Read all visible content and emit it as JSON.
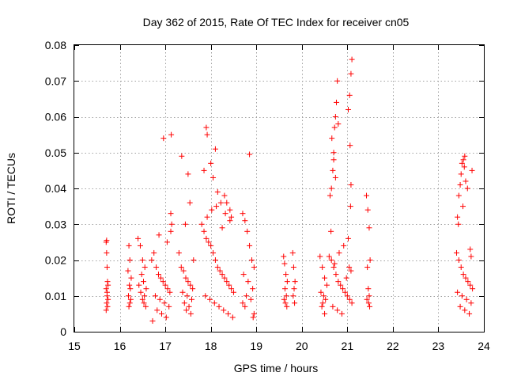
{
  "chart_data": {
    "type": "scatter",
    "title": "Day 362 of 2015, Rate Of TEC Index for receiver cn05",
    "xlabel": "GPS time / hours",
    "ylabel": "ROTI / TECUs",
    "xlim": [
      15,
      24
    ],
    "ylim": [
      0,
      0.08
    ],
    "xticks": [
      "15",
      "16",
      "17",
      "18",
      "19",
      "20",
      "21",
      "22",
      "23",
      "24"
    ],
    "yticks": [
      "0",
      "0.01",
      "0.02",
      "0.03",
      "0.04",
      "0.05",
      "0.06",
      "0.07",
      "0.08"
    ],
    "grid": true,
    "marker": "+",
    "color": "#ff0000",
    "series": [
      {
        "name": "ROTI",
        "x": [
          15.7,
          15.71,
          15.72,
          15.73,
          15.7,
          15.72,
          15.74,
          15.71,
          15.73,
          15.7,
          15.72,
          15.74,
          15.71,
          16.2,
          16.22,
          16.18,
          16.25,
          16.21,
          16.23,
          16.19,
          16.24,
          16.22,
          16.2,
          16.4,
          16.45,
          16.5,
          16.55,
          16.48,
          16.52,
          16.42,
          16.58,
          16.46,
          16.54,
          16.5,
          16.53,
          16.57,
          16.7,
          16.75,
          16.8,
          16.85,
          16.9,
          16.95,
          17.0,
          17.05,
          17.1,
          16.78,
          16.88,
          16.98,
          17.08,
          16.82,
          16.92,
          17.02,
          16.72,
          17.12,
          17.12,
          17.13,
          16.96,
          17.04,
          16.86,
          17.14,
          17.3,
          17.35,
          17.4,
          17.45,
          17.5,
          17.55,
          17.6,
          17.38,
          17.48,
          17.58,
          17.42,
          17.52,
          17.46,
          17.56,
          17.62,
          17.44,
          17.54,
          17.36,
          17.5,
          17.8,
          17.85,
          17.9,
          17.95,
          18.0,
          18.05,
          18.1,
          18.15,
          18.2,
          18.25,
          18.3,
          18.35,
          18.4,
          18.45,
          18.5,
          17.88,
          17.98,
          18.08,
          18.18,
          18.28,
          18.38,
          18.48,
          17.92,
          18.02,
          18.12,
          18.22,
          18.32,
          18.42,
          17.9,
          17.92,
          18.0,
          18.05,
          18.1,
          18.3,
          18.35,
          18.42,
          18.45,
          17.85,
          18.15,
          18.25,
          18.7,
          18.75,
          18.8,
          18.85,
          18.9,
          18.95,
          18.72,
          18.82,
          18.92,
          18.78,
          18.88,
          18.7,
          18.75,
          18.95,
          18.93,
          18.85,
          19.6,
          19.62,
          19.65,
          19.68,
          19.63,
          19.66,
          19.61,
          19.64,
          19.67,
          19.8,
          19.82,
          19.85,
          19.83,
          19.81,
          19.84,
          20.4,
          20.45,
          20.5,
          20.55,
          20.42,
          20.48,
          20.52,
          20.46,
          20.44,
          20.5,
          20.6,
          20.65,
          20.7,
          20.75,
          20.8,
          20.85,
          20.9,
          20.95,
          21.0,
          21.05,
          21.1,
          20.68,
          20.78,
          20.88,
          20.98,
          21.08,
          20.72,
          20.82,
          20.92,
          21.02,
          20.62,
          20.65,
          20.68,
          20.7,
          20.72,
          20.74,
          20.76,
          20.78,
          20.8,
          20.66,
          20.7,
          20.74,
          20.64,
          21.02,
          21.05,
          21.08,
          21.1,
          21.06,
          21.04,
          21.08,
          21.07,
          21.42,
          21.45,
          21.48,
          21.5,
          21.44,
          21.46,
          21.48,
          21.43,
          21.47,
          21.49,
          23.4,
          23.45,
          23.5,
          23.55,
          23.6,
          23.65,
          23.7,
          23.75,
          23.42,
          23.52,
          23.62,
          23.72,
          23.48,
          23.58,
          23.68,
          23.44,
          23.54,
          23.64,
          23.74,
          23.42,
          23.45,
          23.48,
          23.5,
          23.52,
          23.55,
          23.57,
          23.58,
          23.6,
          23.7,
          23.72
        ],
        "y": [
          0.025,
          0.022,
          0.018,
          0.014,
          0.012,
          0.01,
          0.009,
          0.008,
          0.007,
          0.006,
          0.011,
          0.013,
          0.0255,
          0.024,
          0.02,
          0.017,
          0.015,
          0.013,
          0.012,
          0.01,
          0.009,
          0.008,
          0.007,
          0.026,
          0.024,
          0.02,
          0.018,
          0.016,
          0.014,
          0.013,
          0.012,
          0.011,
          0.01,
          0.009,
          0.008,
          0.007,
          0.02,
          0.022,
          0.018,
          0.016,
          0.015,
          0.014,
          0.013,
          0.012,
          0.011,
          0.01,
          0.009,
          0.008,
          0.007,
          0.006,
          0.005,
          0.004,
          0.003,
          0.028,
          0.033,
          0.055,
          0.054,
          0.025,
          0.027,
          0.03,
          0.022,
          0.018,
          0.017,
          0.015,
          0.014,
          0.013,
          0.012,
          0.011,
          0.01,
          0.009,
          0.008,
          0.007,
          0.006,
          0.005,
          0.02,
          0.03,
          0.036,
          0.049,
          0.044,
          0.03,
          0.028,
          0.026,
          0.025,
          0.024,
          0.022,
          0.02,
          0.018,
          0.017,
          0.016,
          0.015,
          0.014,
          0.013,
          0.012,
          0.011,
          0.01,
          0.009,
          0.008,
          0.007,
          0.006,
          0.005,
          0.004,
          0.032,
          0.034,
          0.035,
          0.036,
          0.033,
          0.031,
          0.057,
          0.055,
          0.047,
          0.043,
          0.051,
          0.038,
          0.036,
          0.034,
          0.032,
          0.045,
          0.039,
          0.029,
          0.033,
          0.031,
          0.028,
          0.024,
          0.02,
          0.018,
          0.016,
          0.014,
          0.012,
          0.01,
          0.009,
          0.008,
          0.007,
          0.005,
          0.004,
          0.0495,
          0.021,
          0.019,
          0.016,
          0.014,
          0.012,
          0.01,
          0.009,
          0.008,
          0.007,
          0.022,
          0.018,
          0.014,
          0.012,
          0.01,
          0.008,
          0.021,
          0.018,
          0.015,
          0.013,
          0.011,
          0.01,
          0.009,
          0.008,
          0.007,
          0.005,
          0.021,
          0.02,
          0.018,
          0.016,
          0.014,
          0.013,
          0.012,
          0.011,
          0.01,
          0.009,
          0.008,
          0.007,
          0.006,
          0.005,
          0.015,
          0.017,
          0.019,
          0.022,
          0.024,
          0.026,
          0.038,
          0.04,
          0.045,
          0.05,
          0.057,
          0.06,
          0.064,
          0.07,
          0.058,
          0.054,
          0.048,
          0.043,
          0.028,
          0.062,
          0.066,
          0.072,
          0.076,
          0.052,
          0.018,
          0.041,
          0.035,
          0.038,
          0.034,
          0.029,
          0.02,
          0.018,
          0.012,
          0.01,
          0.009,
          0.008,
          0.007,
          0.022,
          0.02,
          0.018,
          0.016,
          0.015,
          0.014,
          0.013,
          0.012,
          0.011,
          0.01,
          0.009,
          0.008,
          0.007,
          0.006,
          0.005,
          0.03,
          0.035,
          0.04,
          0.045,
          0.032,
          0.038,
          0.041,
          0.044,
          0.047,
          0.048,
          0.046,
          0.049,
          0.042,
          0.023,
          0.021
        ]
      }
    ]
  }
}
